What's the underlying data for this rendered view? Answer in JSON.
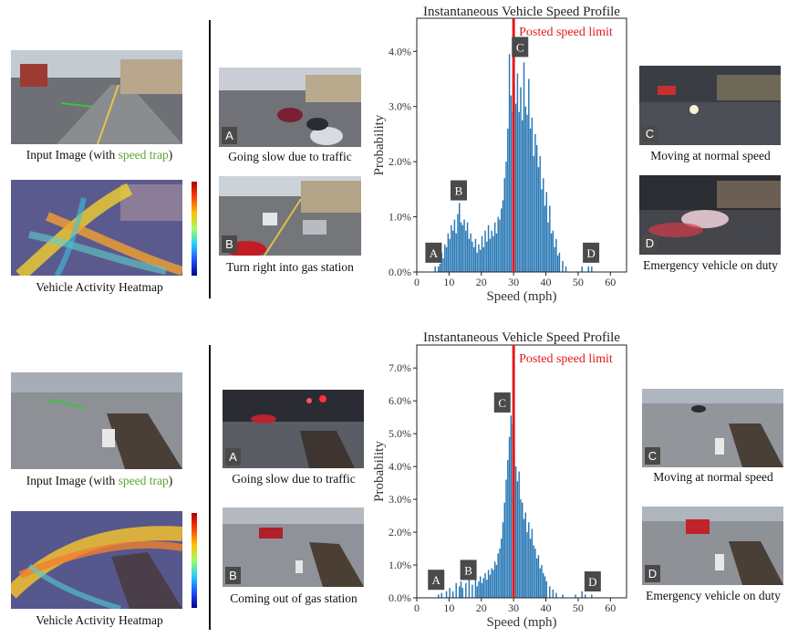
{
  "colors": {
    "bar": "#2878b5",
    "limit": "#e31a1c",
    "speed_trap": "#5aa833",
    "badge_bg": "#4a4a4a"
  },
  "rows": [
    {
      "input_caption": {
        "prefix": "Input Image (with ",
        "highlight": "speed trap",
        "suffix": ")"
      },
      "heatmap_caption": "Vehicle Activity Heatmap",
      "left_examples": [
        {
          "badge": "A",
          "caption": "Going slow due to traffic"
        },
        {
          "badge": "B",
          "caption": "Turn right into gas station"
        }
      ],
      "right_examples": [
        {
          "badge": "C",
          "caption": "Moving at normal speed"
        },
        {
          "badge": "D",
          "caption": "Emergency vehicle on duty"
        }
      ]
    },
    {
      "input_caption": {
        "prefix": "Input Image (with ",
        "highlight": "speed trap",
        "suffix": ")"
      },
      "heatmap_caption": "Vehicle Activity Heatmap",
      "left_examples": [
        {
          "badge": "A",
          "caption": "Going slow due to traffic"
        },
        {
          "badge": "B",
          "caption": "Coming out of gas station"
        }
      ],
      "right_examples": [
        {
          "badge": "C",
          "caption": "Moving at normal speed"
        },
        {
          "badge": "D",
          "caption": "Emergency vehicle on duty"
        }
      ]
    }
  ],
  "chart_data": [
    {
      "type": "bar",
      "title": "Instantaneous Vehicle Speed Profile",
      "xlabel": "Speed (mph)",
      "ylabel": "Probability",
      "xlim": [
        0,
        65
      ],
      "ylim": [
        0,
        4.6
      ],
      "xticks": [
        0,
        10,
        20,
        30,
        40,
        50,
        60
      ],
      "yticks": [
        0,
        1,
        2,
        3,
        4
      ],
      "ytick_format": "percent_1dp",
      "bin_width": 0.5,
      "limit": {
        "value": 30,
        "label": "Posted speed limit"
      },
      "markers": [
        {
          "label": "A",
          "x": 5.2,
          "y": 0.35
        },
        {
          "label": "B",
          "x": 13.0,
          "y": 1.48
        },
        {
          "label": "C",
          "x": 32.0,
          "y": 4.08
        },
        {
          "label": "D",
          "x": 54.0,
          "y": 0.35
        }
      ],
      "series": [
        {
          "values": [
            [
              5.5,
              0.1
            ],
            [
              6.5,
              0.1
            ],
            [
              7.0,
              0.15
            ],
            [
              7.5,
              0.35
            ],
            [
              8.0,
              0.25
            ],
            [
              8.5,
              0.5
            ],
            [
              9.0,
              0.45
            ],
            [
              9.5,
              0.7
            ],
            [
              10.0,
              0.6
            ],
            [
              10.5,
              0.85
            ],
            [
              11.0,
              0.75
            ],
            [
              11.5,
              0.95
            ],
            [
              12.0,
              0.7
            ],
            [
              12.5,
              1.05
            ],
            [
              13.0,
              1.25
            ],
            [
              13.5,
              0.9
            ],
            [
              14.0,
              0.85
            ],
            [
              14.5,
              0.95
            ],
            [
              15.0,
              0.75
            ],
            [
              15.5,
              0.9
            ],
            [
              16.0,
              0.6
            ],
            [
              16.5,
              0.7
            ],
            [
              17.0,
              0.55
            ],
            [
              17.5,
              0.45
            ],
            [
              18.0,
              0.6
            ],
            [
              18.5,
              0.35
            ],
            [
              19.0,
              0.5
            ],
            [
              19.5,
              0.4
            ],
            [
              20.0,
              0.65
            ],
            [
              20.5,
              0.45
            ],
            [
              21.0,
              0.75
            ],
            [
              21.5,
              0.55
            ],
            [
              22.0,
              0.85
            ],
            [
              22.5,
              0.6
            ],
            [
              23.0,
              0.75
            ],
            [
              23.5,
              0.65
            ],
            [
              24.0,
              0.9
            ],
            [
              24.5,
              0.7
            ],
            [
              25.0,
              1.0
            ],
            [
              25.5,
              0.95
            ],
            [
              26.0,
              1.15
            ],
            [
              26.5,
              1.3
            ],
            [
              27.0,
              1.7
            ],
            [
              27.5,
              2.0
            ],
            [
              28.0,
              2.6
            ],
            [
              28.5,
              3.95
            ],
            [
              29.0,
              3.2
            ],
            [
              29.5,
              2.9
            ],
            [
              30.0,
              3.4
            ],
            [
              30.5,
              3.05
            ],
            [
              31.0,
              3.6
            ],
            [
              31.5,
              2.9
            ],
            [
              32.0,
              3.35
            ],
            [
              32.5,
              2.75
            ],
            [
              33.0,
              3.8
            ],
            [
              33.5,
              3.0
            ],
            [
              34.0,
              2.85
            ],
            [
              34.5,
              3.5
            ],
            [
              35.0,
              2.6
            ],
            [
              35.5,
              2.8
            ],
            [
              36.0,
              2.1
            ],
            [
              36.5,
              2.5
            ],
            [
              37.0,
              2.3
            ],
            [
              37.5,
              1.9
            ],
            [
              38.0,
              2.1
            ],
            [
              38.5,
              1.5
            ],
            [
              39.0,
              1.7
            ],
            [
              39.5,
              1.2
            ],
            [
              40.0,
              1.45
            ],
            [
              40.5,
              0.9
            ],
            [
              41.0,
              1.2
            ],
            [
              41.5,
              0.7
            ],
            [
              42.0,
              0.75
            ],
            [
              42.5,
              0.45
            ],
            [
              43.0,
              0.6
            ],
            [
              43.5,
              0.3
            ],
            [
              44.0,
              0.35
            ],
            [
              45.0,
              0.2
            ],
            [
              46.0,
              0.1
            ],
            [
              51.0,
              0.1
            ],
            [
              53.0,
              0.1
            ],
            [
              54.0,
              0.1
            ]
          ]
        }
      ]
    },
    {
      "type": "bar",
      "title": "Instantaneous Vehicle Speed Profile",
      "xlabel": "Speed (mph)",
      "ylabel": "Probability",
      "xlim": [
        0,
        65
      ],
      "ylim": [
        0,
        7.7
      ],
      "xticks": [
        0,
        10,
        20,
        30,
        40,
        50,
        60
      ],
      "yticks": [
        0,
        1,
        2,
        3,
        4,
        5,
        6,
        7
      ],
      "ytick_format": "percent_1dp",
      "bin_width": 0.5,
      "limit": {
        "value": 30,
        "label": "Posted speed limit"
      },
      "markers": [
        {
          "label": "A",
          "x": 6.0,
          "y": 0.55
        },
        {
          "label": "B",
          "x": 16.0,
          "y": 0.85
        },
        {
          "label": "C",
          "x": 26.5,
          "y": 5.95
        },
        {
          "label": "D",
          "x": 54.5,
          "y": 0.5
        }
      ],
      "series": [
        {
          "values": [
            [
              6.5,
              0.1
            ],
            [
              7.5,
              0.15
            ],
            [
              9.0,
              0.2
            ],
            [
              10.0,
              0.3
            ],
            [
              11.0,
              0.2
            ],
            [
              12.0,
              0.45
            ],
            [
              13.0,
              0.35
            ],
            [
              13.5,
              0.5
            ],
            [
              14.0,
              0.3
            ],
            [
              15.0,
              0.45
            ],
            [
              16.0,
              0.55
            ],
            [
              17.0,
              0.4
            ],
            [
              18.0,
              0.55
            ],
            [
              18.5,
              0.35
            ],
            [
              19.0,
              0.5
            ],
            [
              19.5,
              0.65
            ],
            [
              20.0,
              0.45
            ],
            [
              20.5,
              0.6
            ],
            [
              21.0,
              0.75
            ],
            [
              21.5,
              0.55
            ],
            [
              22.0,
              0.85
            ],
            [
              22.5,
              0.7
            ],
            [
              23.0,
              0.9
            ],
            [
              23.5,
              0.85
            ],
            [
              24.0,
              1.1
            ],
            [
              24.5,
              1.0
            ],
            [
              25.0,
              1.35
            ],
            [
              25.5,
              1.5
            ],
            [
              26.0,
              1.8
            ],
            [
              26.5,
              2.3
            ],
            [
              27.0,
              2.9
            ],
            [
              27.5,
              3.6
            ],
            [
              28.0,
              4.2
            ],
            [
              28.5,
              4.9
            ],
            [
              29.0,
              5.55
            ],
            [
              29.5,
              5.3
            ],
            [
              30.0,
              4.5
            ],
            [
              30.5,
              4.0
            ],
            [
              31.0,
              3.55
            ],
            [
              31.5,
              3.85
            ],
            [
              32.0,
              3.0
            ],
            [
              32.5,
              2.9
            ],
            [
              33.0,
              2.4
            ],
            [
              33.5,
              2.6
            ],
            [
              34.0,
              2.0
            ],
            [
              34.5,
              2.3
            ],
            [
              35.0,
              1.8
            ],
            [
              35.5,
              2.1
            ],
            [
              36.0,
              1.6
            ],
            [
              36.5,
              1.5
            ],
            [
              37.0,
              1.2
            ],
            [
              37.5,
              1.3
            ],
            [
              38.0,
              0.9
            ],
            [
              38.5,
              1.0
            ],
            [
              39.0,
              0.75
            ],
            [
              39.5,
              0.65
            ],
            [
              40.0,
              0.5
            ],
            [
              41.0,
              0.35
            ],
            [
              42.0,
              0.25
            ],
            [
              43.0,
              0.15
            ],
            [
              45.0,
              0.1
            ],
            [
              49.0,
              0.1
            ],
            [
              51.0,
              0.2
            ],
            [
              52.0,
              0.1
            ],
            [
              54.0,
              0.1
            ]
          ]
        }
      ]
    }
  ]
}
